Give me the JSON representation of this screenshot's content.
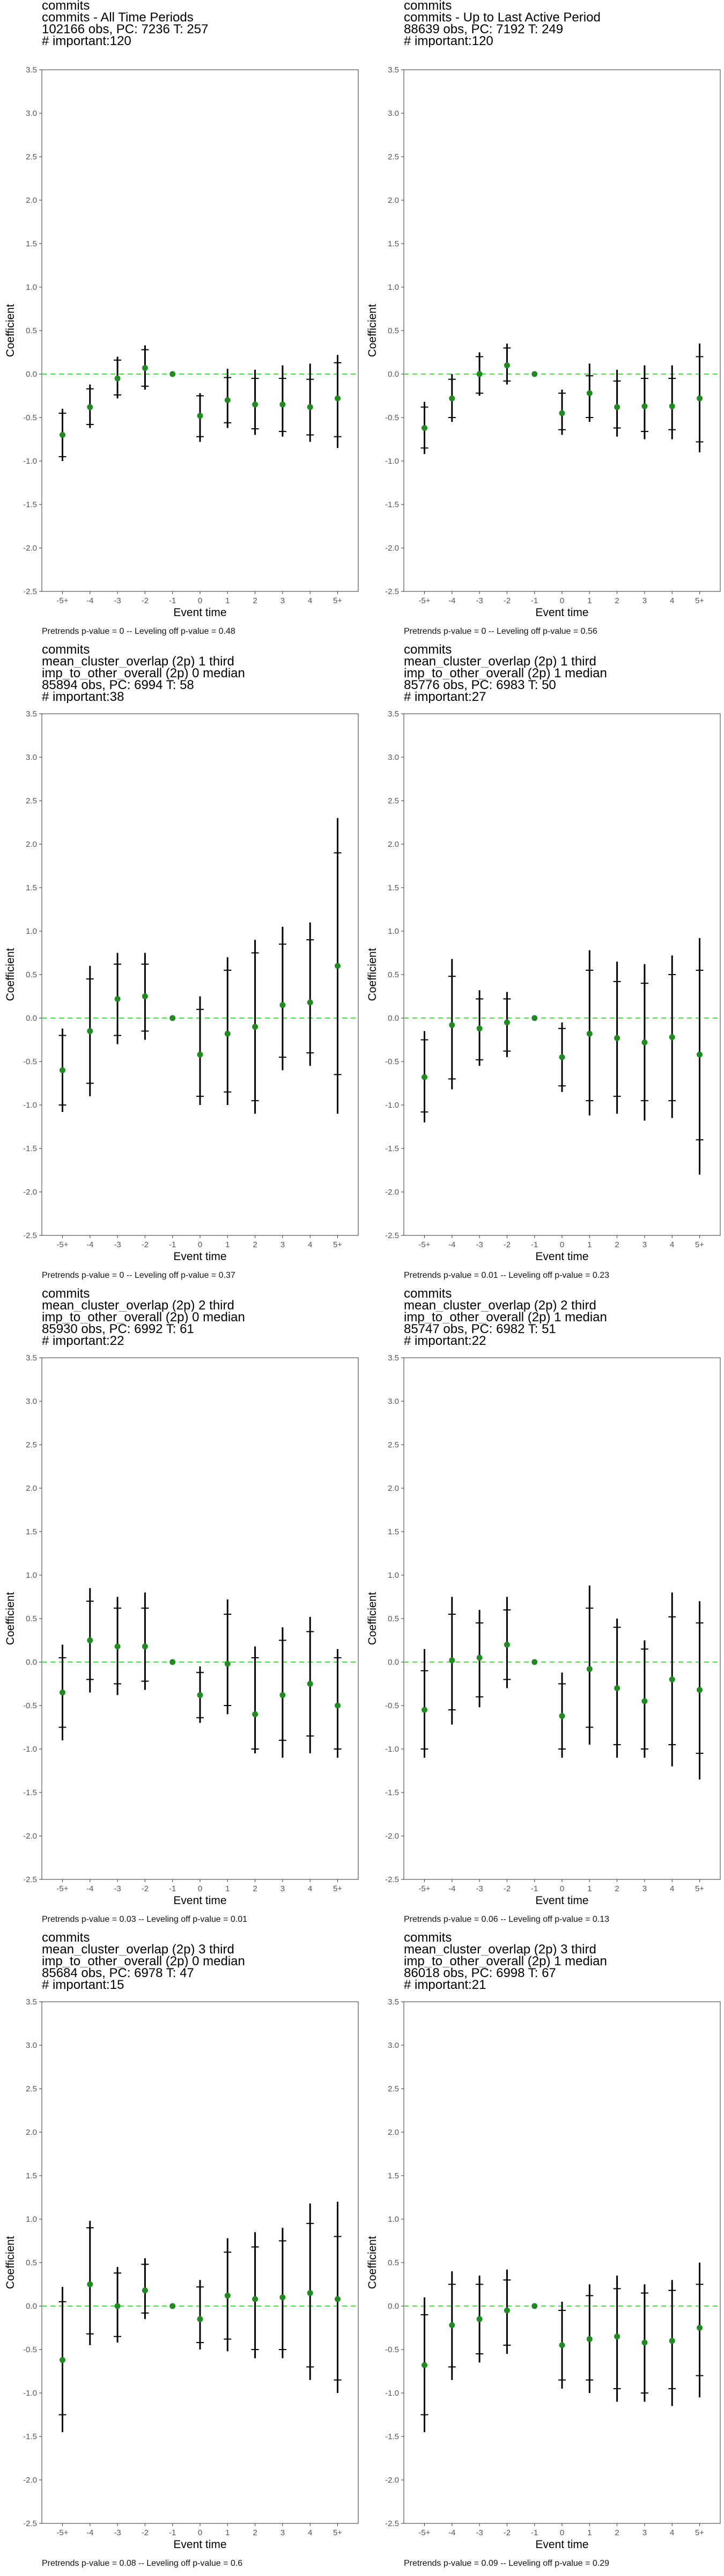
{
  "chart_data": [
    {
      "type": "errorbar",
      "title_lines": [
        "commits",
        "commits - All Time Periods",
        "102166 obs, PC: 7236 T: 257",
        "# important:120"
      ],
      "xlabel": "Event time",
      "ylabel": "Coefficient",
      "categories": [
        "-5+",
        "-4",
        "-3",
        "-2",
        "-1",
        "0",
        "1",
        "2",
        "3",
        "4",
        "5+"
      ],
      "estimates": [
        -0.7,
        -0.38,
        -0.05,
        0.07,
        0.0,
        -0.48,
        -0.3,
        -0.35,
        -0.35,
        -0.38,
        -0.28
      ],
      "ci95_low": [
        -1.0,
        -0.62,
        -0.28,
        -0.18,
        0.0,
        -0.78,
        -0.62,
        -0.7,
        -0.72,
        -0.78,
        -0.85
      ],
      "ci95_high": [
        -0.4,
        -0.12,
        0.2,
        0.33,
        0.0,
        -0.22,
        0.06,
        0.05,
        0.1,
        0.12,
        0.22
      ],
      "ci90_low": [
        -0.95,
        -0.58,
        -0.24,
        -0.14,
        0.0,
        -0.72,
        -0.56,
        -0.63,
        -0.66,
        -0.7,
        -0.72
      ],
      "ci90_high": [
        -0.45,
        -0.17,
        0.16,
        0.28,
        0.0,
        -0.25,
        -0.04,
        -0.05,
        -0.05,
        -0.06,
        0.13
      ],
      "ylim": [
        -2.5,
        3.5
      ],
      "yticks": [
        -2.5,
        -2.0,
        -1.5,
        -1.0,
        -0.5,
        0.0,
        0.5,
        1.0,
        1.5,
        2.0,
        2.5,
        3.0,
        3.5
      ],
      "reference_line": 0.0,
      "footnote": "Pretrends p-value = 0 -- Leveling off p-value = 0.48"
    },
    {
      "type": "errorbar",
      "title_lines": [
        "commits",
        "commits - Up to Last Active Period",
        "88639 obs, PC: 7192 T: 249",
        "# important:120"
      ],
      "xlabel": "Event time",
      "ylabel": "Coefficient",
      "categories": [
        "-5+",
        "-4",
        "-3",
        "-2",
        "-1",
        "0",
        "1",
        "2",
        "3",
        "4",
        "5+"
      ],
      "estimates": [
        -0.62,
        -0.28,
        0.0,
        0.1,
        0.0,
        -0.45,
        -0.22,
        -0.38,
        -0.37,
        -0.37,
        -0.28
      ],
      "ci95_low": [
        -0.92,
        -0.55,
        -0.25,
        -0.12,
        0.0,
        -0.7,
        -0.55,
        -0.72,
        -0.75,
        -0.75,
        -0.9
      ],
      "ci95_high": [
        -0.32,
        0.0,
        0.25,
        0.35,
        0.0,
        -0.18,
        0.12,
        0.05,
        0.1,
        0.1,
        0.35
      ],
      "ci90_low": [
        -0.85,
        -0.5,
        -0.22,
        -0.08,
        0.0,
        -0.64,
        -0.5,
        -0.62,
        -0.66,
        -0.64,
        -0.78
      ],
      "ci90_high": [
        -0.38,
        -0.06,
        0.2,
        0.3,
        0.0,
        -0.22,
        -0.02,
        -0.08,
        -0.05,
        -0.05,
        0.2
      ],
      "ylim": [
        -2.5,
        3.5
      ],
      "yticks": [
        -2.5,
        -2.0,
        -1.5,
        -1.0,
        -0.5,
        0.0,
        0.5,
        1.0,
        1.5,
        2.0,
        2.5,
        3.0,
        3.5
      ],
      "reference_line": 0.0,
      "footnote": "Pretrends p-value = 0 -- Leveling off p-value = 0.56"
    },
    {
      "type": "errorbar",
      "title_lines": [
        "commits",
        "mean_cluster_overlap (2p) 1 third",
        "imp_to_other_overall (2p) 0 median",
        "85894 obs, PC: 6994 T: 58",
        "# important:38"
      ],
      "xlabel": "Event time",
      "ylabel": "Coefficient",
      "categories": [
        "-5+",
        "-4",
        "-3",
        "-2",
        "-1",
        "0",
        "1",
        "2",
        "3",
        "4",
        "5+"
      ],
      "estimates": [
        -0.6,
        -0.15,
        0.22,
        0.25,
        0.0,
        -0.42,
        -0.18,
        -0.1,
        0.15,
        0.18,
        0.6
      ],
      "ci95_low": [
        -1.08,
        -0.9,
        -0.3,
        -0.25,
        0.0,
        -1.0,
        -1.0,
        -1.1,
        -0.6,
        -0.55,
        -1.1
      ],
      "ci95_high": [
        -0.12,
        0.6,
        0.75,
        0.75,
        0.0,
        0.25,
        0.7,
        0.9,
        1.05,
        1.1,
        2.3
      ],
      "ci90_low": [
        -1.0,
        -0.75,
        -0.2,
        -0.15,
        0.0,
        -0.9,
        -0.85,
        -0.95,
        -0.45,
        -0.4,
        -0.65
      ],
      "ci90_high": [
        -0.2,
        0.45,
        0.62,
        0.62,
        0.0,
        0.1,
        0.55,
        0.75,
        0.85,
        0.9,
        1.9
      ],
      "ylim": [
        -2.5,
        3.5
      ],
      "yticks": [
        -2.5,
        -2.0,
        -1.5,
        -1.0,
        -0.5,
        0.0,
        0.5,
        1.0,
        1.5,
        2.0,
        2.5,
        3.0,
        3.5
      ],
      "reference_line": 0.0,
      "footnote": "Pretrends p-value = 0 -- Leveling off p-value = 0.37"
    },
    {
      "type": "errorbar",
      "title_lines": [
        "commits",
        "mean_cluster_overlap (2p) 1 third",
        "imp_to_other_overall (2p) 1 median",
        "85776 obs, PC: 6983 T: 50",
        "# important:27"
      ],
      "xlabel": "Event time",
      "ylabel": "Coefficient",
      "categories": [
        "-5+",
        "-4",
        "-3",
        "-2",
        "-1",
        "0",
        "1",
        "2",
        "3",
        "4",
        "5+"
      ],
      "estimates": [
        -0.68,
        -0.08,
        -0.12,
        -0.05,
        0.0,
        -0.45,
        -0.18,
        -0.23,
        -0.28,
        -0.22,
        -0.42
      ],
      "ci95_low": [
        -1.2,
        -0.82,
        -0.55,
        -0.45,
        0.0,
        -0.85,
        -1.12,
        -1.1,
        -1.18,
        -1.15,
        -1.8
      ],
      "ci95_high": [
        -0.15,
        0.68,
        0.32,
        0.3,
        0.0,
        -0.05,
        0.78,
        0.65,
        0.62,
        0.72,
        0.92
      ],
      "ci90_low": [
        -1.08,
        -0.7,
        -0.48,
        -0.38,
        0.0,
        -0.78,
        -0.95,
        -0.9,
        -0.95,
        -0.95,
        -1.4
      ],
      "ci90_high": [
        -0.25,
        0.48,
        0.22,
        0.22,
        0.0,
        -0.12,
        0.55,
        0.42,
        0.4,
        0.5,
        0.55
      ],
      "ylim": [
        -2.5,
        3.5
      ],
      "yticks": [
        -2.5,
        -2.0,
        -1.5,
        -1.0,
        -0.5,
        0.0,
        0.5,
        1.0,
        1.5,
        2.0,
        2.5,
        3.0,
        3.5
      ],
      "reference_line": 0.0,
      "footnote": "Pretrends p-value = 0.01 -- Leveling off p-value = 0.23"
    },
    {
      "type": "errorbar",
      "title_lines": [
        "commits",
        "mean_cluster_overlap (2p) 2 third",
        "imp_to_other_overall (2p) 0 median",
        "85930 obs, PC: 6992 T: 61",
        "# important:22"
      ],
      "xlabel": "Event time",
      "ylabel": "Coefficient",
      "categories": [
        "-5+",
        "-4",
        "-3",
        "-2",
        "-1",
        "0",
        "1",
        "2",
        "3",
        "4",
        "5+"
      ],
      "estimates": [
        -0.35,
        0.25,
        0.18,
        0.18,
        0.0,
        -0.38,
        -0.02,
        -0.6,
        -0.38,
        -0.25,
        -0.5
      ],
      "ci95_low": [
        -0.9,
        -0.35,
        -0.38,
        -0.32,
        0.0,
        -0.7,
        -0.6,
        -1.05,
        -1.1,
        -1.05,
        -1.1
      ],
      "ci95_high": [
        0.2,
        0.85,
        0.75,
        0.8,
        0.0,
        -0.05,
        0.72,
        0.18,
        0.4,
        0.52,
        0.15
      ],
      "ci90_low": [
        -0.75,
        -0.2,
        -0.25,
        -0.22,
        0.0,
        -0.64,
        -0.5,
        -1.0,
        -0.9,
        -0.85,
        -1.0
      ],
      "ci90_high": [
        0.05,
        0.7,
        0.62,
        0.62,
        0.0,
        -0.12,
        0.55,
        0.05,
        0.25,
        0.35,
        0.05
      ],
      "ylim": [
        -2.5,
        3.5
      ],
      "yticks": [
        -2.5,
        -2.0,
        -1.5,
        -1.0,
        -0.5,
        0.0,
        0.5,
        1.0,
        1.5,
        2.0,
        2.5,
        3.0,
        3.5
      ],
      "reference_line": 0.0,
      "footnote": "Pretrends p-value = 0.03 -- Leveling off p-value = 0.01"
    },
    {
      "type": "errorbar",
      "title_lines": [
        "commits",
        "mean_cluster_overlap (2p) 2 third",
        "imp_to_other_overall (2p) 1 median",
        "85747 obs, PC: 6982 T: 51",
        "# important:22"
      ],
      "xlabel": "Event time",
      "ylabel": "Coefficient",
      "categories": [
        "-5+",
        "-4",
        "-3",
        "-2",
        "-1",
        "0",
        "1",
        "2",
        "3",
        "4",
        "5+"
      ],
      "estimates": [
        -0.55,
        0.02,
        0.05,
        0.2,
        0.0,
        -0.62,
        -0.08,
        -0.3,
        -0.45,
        -0.2,
        -0.32
      ],
      "ci95_low": [
        -1.1,
        -0.72,
        -0.52,
        -0.3,
        0.0,
        -1.1,
        -0.95,
        -1.1,
        -1.1,
        -1.2,
        -1.35
      ],
      "ci95_high": [
        0.15,
        0.75,
        0.6,
        0.75,
        0.0,
        -0.12,
        0.88,
        0.5,
        0.25,
        0.8,
        0.7
      ],
      "ci90_low": [
        -1.0,
        -0.55,
        -0.4,
        -0.2,
        0.0,
        -1.0,
        -0.75,
        -0.95,
        -1.0,
        -0.95,
        -1.05
      ],
      "ci90_high": [
        -0.1,
        0.55,
        0.45,
        0.6,
        0.0,
        -0.25,
        0.62,
        0.4,
        0.15,
        0.52,
        0.45
      ],
      "ylim": [
        -2.5,
        3.5
      ],
      "yticks": [
        -2.5,
        -2.0,
        -1.5,
        -1.0,
        -0.5,
        0.0,
        0.5,
        1.0,
        1.5,
        2.0,
        2.5,
        3.0,
        3.5
      ],
      "reference_line": 0.0,
      "footnote": "Pretrends p-value = 0.06 -- Leveling off p-value = 0.13"
    },
    {
      "type": "errorbar",
      "title_lines": [
        "commits",
        "mean_cluster_overlap (2p) 3 third",
        "imp_to_other_overall (2p) 0 median",
        "85684 obs, PC: 6978 T: 47",
        "# important:15"
      ],
      "xlabel": "Event time",
      "ylabel": "Coefficient",
      "categories": [
        "-5+",
        "-4",
        "-3",
        "-2",
        "-1",
        "0",
        "1",
        "2",
        "3",
        "4",
        "5+"
      ],
      "estimates": [
        -0.62,
        0.25,
        0.0,
        0.18,
        0.0,
        -0.15,
        0.12,
        0.08,
        0.1,
        0.15,
        0.08
      ],
      "ci95_low": [
        -1.45,
        -0.45,
        -0.42,
        -0.15,
        0.0,
        -0.5,
        -0.52,
        -0.6,
        -0.6,
        -0.85,
        -1.0
      ],
      "ci95_high": [
        0.22,
        0.98,
        0.45,
        0.55,
        0.0,
        0.3,
        0.78,
        0.85,
        0.9,
        1.18,
        1.2
      ],
      "ci90_low": [
        -1.25,
        -0.32,
        -0.35,
        -0.08,
        0.0,
        -0.42,
        -0.38,
        -0.5,
        -0.5,
        -0.7,
        -0.85
      ],
      "ci90_high": [
        0.05,
        0.9,
        0.38,
        0.48,
        0.0,
        0.22,
        0.62,
        0.68,
        0.75,
        0.95,
        0.8
      ],
      "ylim": [
        -2.5,
        3.5
      ],
      "yticks": [
        -2.5,
        -2.0,
        -1.5,
        -1.0,
        -0.5,
        0.0,
        0.5,
        1.0,
        1.5,
        2.0,
        2.5,
        3.0,
        3.5
      ],
      "reference_line": 0.0,
      "footnote": "Pretrends p-value = 0.08 -- Leveling off p-value = 0.6"
    },
    {
      "type": "errorbar",
      "title_lines": [
        "commits",
        "mean_cluster_overlap (2p) 3 third",
        "imp_to_other_overall (2p) 1 median",
        "86018 obs, PC: 6998 T: 67",
        "# important:21"
      ],
      "xlabel": "Event time",
      "ylabel": "Coefficient",
      "categories": [
        "-5+",
        "-4",
        "-3",
        "-2",
        "-1",
        "0",
        "1",
        "2",
        "3",
        "4",
        "5+"
      ],
      "estimates": [
        -0.68,
        -0.22,
        -0.15,
        -0.05,
        0.0,
        -0.45,
        -0.38,
        -0.35,
        -0.42,
        -0.4,
        -0.25
      ],
      "ci95_low": [
        -1.45,
        -0.85,
        -0.65,
        -0.55,
        0.0,
        -0.95,
        -1.0,
        -1.1,
        -1.1,
        -1.15,
        -1.05
      ],
      "ci95_high": [
        0.1,
        0.4,
        0.35,
        0.42,
        0.0,
        0.05,
        0.25,
        0.35,
        0.25,
        0.3,
        0.5
      ],
      "ci90_low": [
        -1.25,
        -0.7,
        -0.55,
        -0.45,
        0.0,
        -0.85,
        -0.85,
        -0.95,
        -1.0,
        -0.95,
        -0.8
      ],
      "ci90_high": [
        -0.1,
        0.25,
        0.25,
        0.3,
        0.0,
        -0.05,
        0.12,
        0.2,
        0.15,
        0.18,
        0.25
      ],
      "ylim": [
        -2.5,
        3.5
      ],
      "yticks": [
        -2.5,
        -2.0,
        -1.5,
        -1.0,
        -0.5,
        0.0,
        0.5,
        1.0,
        1.5,
        2.0,
        2.5,
        3.0,
        3.5
      ],
      "reference_line": 0.0,
      "footnote": "Pretrends p-value = 0.09 -- Leveling off p-value = 0.29"
    }
  ],
  "colors": {
    "point": "#1f8c1f",
    "errorbar": "#000000",
    "reference_line": "#44dd44",
    "frame": "#333333",
    "tick_label": "#555555"
  }
}
